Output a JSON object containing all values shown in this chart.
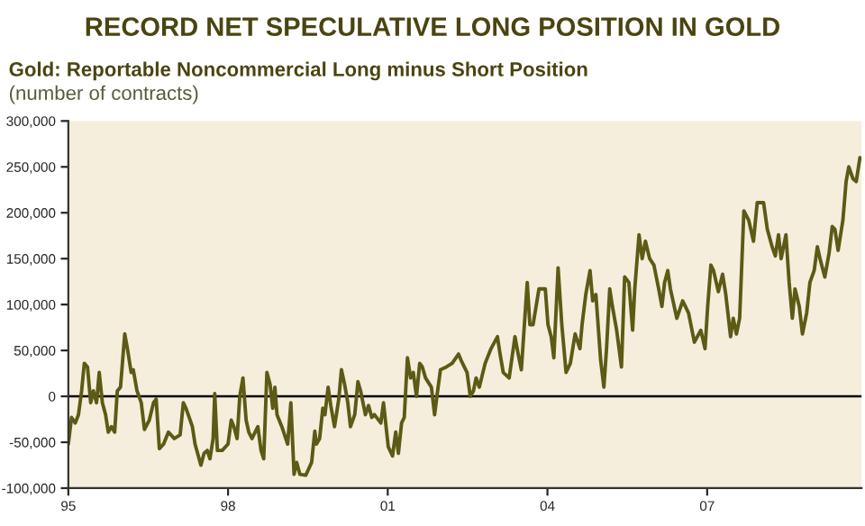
{
  "chart_data": {
    "type": "line",
    "title": "RECORD NET SPECULATIVE LONG POSITION IN GOLD",
    "subtitle": "Gold: Reportable Noncommercial Long minus Short Position",
    "ylabel": "(number of contracts)",
    "xlim": [
      1995,
      2009.9
    ],
    "xticks": [
      {
        "value": 1995,
        "label": "95"
      },
      {
        "value": 1998,
        "label": "98"
      },
      {
        "value": 2001,
        "label": "01"
      },
      {
        "value": 2004,
        "label": "04"
      },
      {
        "value": 2007,
        "label": "07"
      }
    ],
    "ylim": [
      -100000,
      300000
    ],
    "yticks": [
      {
        "value": -100000,
        "label": "-100,000"
      },
      {
        "value": -50000,
        "label": "-50,000"
      },
      {
        "value": 0,
        "label": "0"
      },
      {
        "value": 50000,
        "label": "50,000"
      },
      {
        "value": 100000,
        "label": "100,000"
      },
      {
        "value": 150000,
        "label": "150,000"
      },
      {
        "value": 200000,
        "label": "200,000"
      },
      {
        "value": 250000,
        "label": "250,000"
      },
      {
        "value": 300000,
        "label": "300,000"
      }
    ],
    "grid": false,
    "legend": false,
    "marker": "none",
    "line_style": "solid",
    "ref_lines": [
      {
        "axis": "y",
        "value": 0,
        "label": null,
        "color": "#000000"
      }
    ],
    "series": [
      {
        "color": "#5c5a14",
        "x": [
          1995.0,
          1995.06,
          1995.13,
          1995.19,
          1995.25,
          1995.3,
          1995.36,
          1995.42,
          1995.47,
          1995.53,
          1995.58,
          1995.64,
          1995.7,
          1995.75,
          1995.81,
          1995.87,
          1995.92,
          1995.98,
          1996.06,
          1996.11,
          1996.18,
          1996.22,
          1996.29,
          1996.37,
          1996.43,
          1996.52,
          1996.6,
          1996.65,
          1996.71,
          1996.79,
          1996.88,
          1996.99,
          1997.1,
          1997.16,
          1997.21,
          1997.27,
          1997.33,
          1997.38,
          1997.49,
          1997.55,
          1997.61,
          1997.66,
          1997.72,
          1997.75,
          1997.8,
          1997.89,
          1998.0,
          1998.06,
          1998.11,
          1998.17,
          1998.22,
          1998.28,
          1998.34,
          1998.39,
          1998.45,
          1998.56,
          1998.62,
          1998.67,
          1998.73,
          1998.79,
          1998.84,
          1998.88,
          1998.92,
          1999.01,
          1999.12,
          1999.18,
          1999.24,
          1999.29,
          1999.35,
          1999.46,
          1999.57,
          1999.63,
          1999.66,
          1999.72,
          1999.78,
          1999.82,
          1999.88,
          1999.93,
          2000.0,
          2000.08,
          2000.13,
          2000.19,
          2000.25,
          2000.3,
          2000.38,
          2000.44,
          2000.49,
          2000.58,
          2000.64,
          2000.7,
          2000.75,
          2000.87,
          2000.92,
          2001.01,
          2001.09,
          2001.15,
          2001.2,
          2001.26,
          2001.31,
          2001.37,
          2001.43,
          2001.48,
          2001.54,
          2001.6,
          2001.65,
          2001.71,
          2001.82,
          2001.88,
          2001.93,
          2001.99,
          2002.1,
          2002.21,
          2002.33,
          2002.38,
          2002.49,
          2002.55,
          2002.61,
          2002.66,
          2002.72,
          2002.83,
          2002.94,
          2003.06,
          2003.11,
          2003.17,
          2003.28,
          2003.39,
          2003.45,
          2003.51,
          2003.62,
          2003.67,
          2003.73,
          2003.84,
          2003.96,
          2004.01,
          2004.07,
          2004.12,
          2004.2,
          2004.27,
          2004.35,
          2004.43,
          2004.52,
          2004.61,
          2004.65,
          2004.72,
          2004.8,
          2004.85,
          2004.91,
          2005.0,
          2005.06,
          2005.11,
          2005.17,
          2005.22,
          2005.3,
          2005.39,
          2005.45,
          2005.53,
          2005.6,
          2005.64,
          2005.72,
          2005.78,
          2005.84,
          2005.92,
          2006.0,
          2006.09,
          2006.15,
          2006.2,
          2006.26,
          2006.31,
          2006.43,
          2006.54,
          2006.65,
          2006.76,
          2006.88,
          2006.96,
          2007.01,
          2007.07,
          2007.12,
          2007.21,
          2007.29,
          2007.35,
          2007.44,
          2007.49,
          2007.55,
          2007.61,
          2007.69,
          2007.78,
          2007.87,
          2007.94,
          2008.06,
          2008.13,
          2008.22,
          2008.28,
          2008.34,
          2008.39,
          2008.48,
          2008.54,
          2008.6,
          2008.65,
          2008.73,
          2008.79,
          2008.87,
          2008.93,
          2009.01,
          2009.07,
          2009.12,
          2009.21,
          2009.29,
          2009.35,
          2009.4,
          2009.46,
          2009.55,
          2009.61,
          2009.66,
          2009.74,
          2009.8,
          2009.87
        ],
        "values": [
          -52000,
          -23000,
          -29000,
          -20000,
          6000,
          36000,
          32000,
          -7000,
          6000,
          -7000,
          26000,
          -7000,
          -20000,
          -39000,
          -33000,
          -39000,
          6000,
          10000,
          68000,
          52000,
          26000,
          29000,
          6000,
          -7000,
          -36000,
          -26000,
          -7000,
          -3000,
          -57000,
          -52000,
          -39000,
          -46000,
          -42000,
          -7000,
          -13000,
          -23000,
          -33000,
          -52000,
          -75000,
          -62000,
          -59000,
          -68000,
          -46000,
          3000,
          -59000,
          -59000,
          -52000,
          -26000,
          -33000,
          -46000,
          0,
          20000,
          -26000,
          -39000,
          -46000,
          -33000,
          -59000,
          -68000,
          26000,
          13000,
          -13000,
          10000,
          -20000,
          -33000,
          -52000,
          -7000,
          -85000,
          -72000,
          -85000,
          -86000,
          -72000,
          -38000,
          -52000,
          -46000,
          -13000,
          -20000,
          10000,
          -10000,
          -33000,
          -3000,
          29000,
          13000,
          -7000,
          -33000,
          -20000,
          16000,
          6000,
          -20000,
          -10000,
          -23000,
          -20000,
          -29000,
          -7000,
          -55000,
          -65000,
          -39000,
          -62000,
          -29000,
          -23000,
          42000,
          20000,
          26000,
          0,
          36000,
          32000,
          20000,
          10000,
          -20000,
          3000,
          29000,
          32000,
          36000,
          46000,
          39000,
          26000,
          0,
          6000,
          20000,
          10000,
          36000,
          52000,
          65000,
          46000,
          26000,
          20000,
          65000,
          46000,
          29000,
          124000,
          78000,
          78000,
          117000,
          117000,
          78000,
          65000,
          42000,
          140000,
          78000,
          26000,
          36000,
          68000,
          52000,
          78000,
          111000,
          137000,
          104000,
          111000,
          39000,
          10000,
          52000,
          117000,
          98000,
          72000,
          32000,
          130000,
          124000,
          72000,
          117000,
          176000,
          150000,
          169000,
          150000,
          143000,
          117000,
          98000,
          124000,
          137000,
          117000,
          85000,
          104000,
          91000,
          59000,
          72000,
          52000,
          98000,
          143000,
          137000,
          114000,
          133000,
          111000,
          65000,
          85000,
          68000,
          85000,
          202000,
          192000,
          169000,
          211000,
          211000,
          182000,
          163000,
          153000,
          176000,
          150000,
          176000,
          124000,
          85000,
          117000,
          98000,
          68000,
          91000,
          124000,
          137000,
          163000,
          150000,
          130000,
          156000,
          185000,
          182000,
          159000,
          192000,
          234000,
          250000,
          237000,
          234000,
          260000
        ]
      }
    ]
  }
}
